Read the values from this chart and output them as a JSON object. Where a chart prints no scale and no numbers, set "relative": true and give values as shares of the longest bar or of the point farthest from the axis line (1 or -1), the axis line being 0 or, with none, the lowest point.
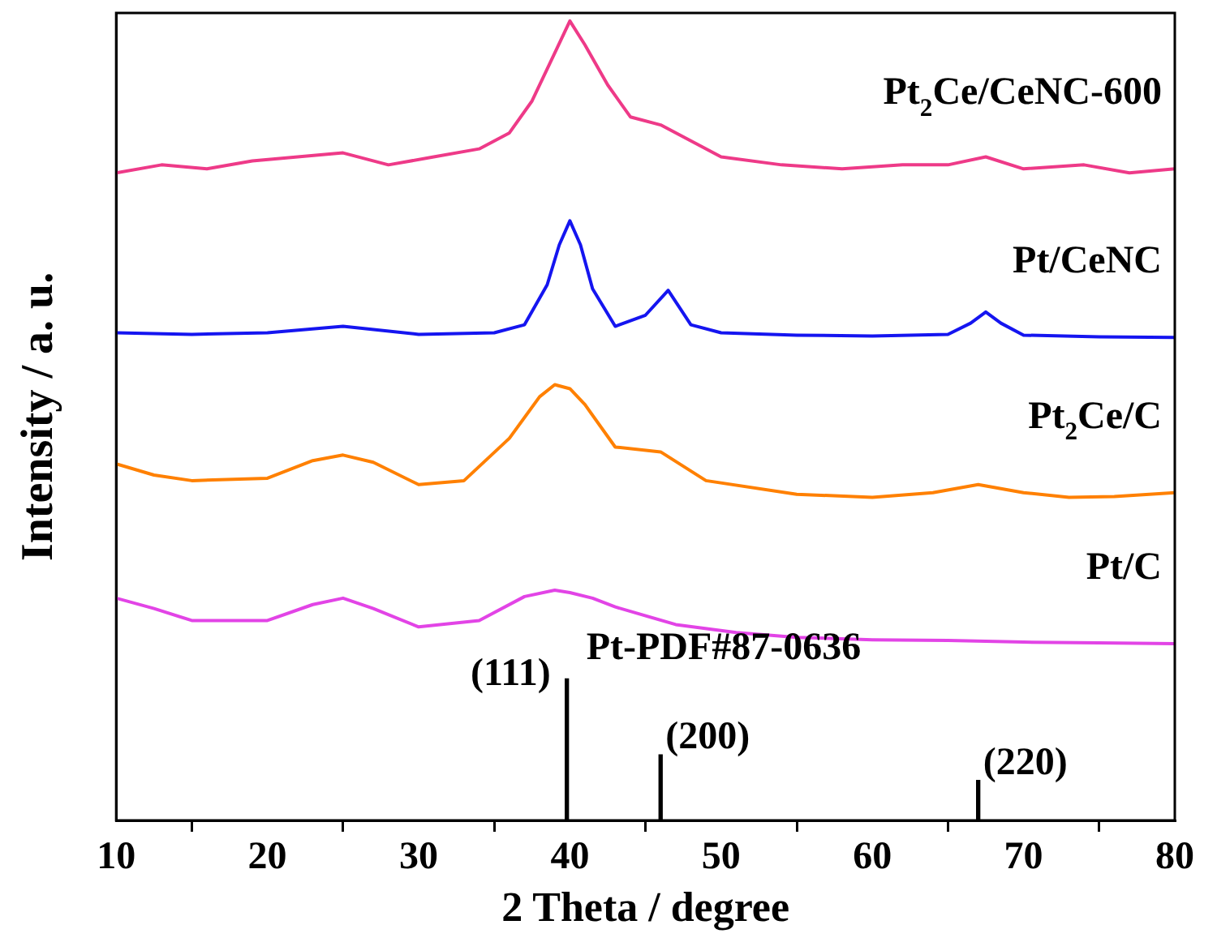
{
  "chart_data": {
    "type": "line",
    "xlabel": "2 Theta / degree",
    "ylabel": "Intensity / a. u.",
    "relative": true,
    "xlim": [
      10,
      80
    ],
    "xticks": [
      10,
      20,
      30,
      40,
      50,
      60,
      70,
      80
    ],
    "grid": false,
    "legend": false,
    "tick_labels": "x",
    "marker": "none",
    "line_style": "solid",
    "series": [
      {
        "name": "Pt$_{2}$Ce/CeNC-600",
        "color": "#ee3a88",
        "x": [
          10,
          13,
          16,
          19,
          22,
          25,
          28,
          31,
          34,
          36,
          37.5,
          39,
          40,
          41,
          42.5,
          44,
          46,
          48,
          50,
          54,
          58,
          62,
          65,
          67.5,
          70,
          74,
          77,
          80
        ],
        "values": [
          0.81,
          0.82,
          0.815,
          0.825,
          0.83,
          0.835,
          0.82,
          0.83,
          0.84,
          0.86,
          0.9,
          0.96,
          1.0,
          0.97,
          0.92,
          0.88,
          0.87,
          0.85,
          0.83,
          0.82,
          0.815,
          0.82,
          0.82,
          0.83,
          0.815,
          0.82,
          0.81,
          0.815
        ]
      },
      {
        "name": "Pt/CeNC",
        "color": "#1515f0",
        "x": [
          10,
          15,
          20,
          25,
          30,
          35,
          37,
          38.5,
          39.3,
          40,
          40.7,
          41.5,
          43,
          45,
          46.5,
          48,
          50,
          55,
          60,
          65,
          66.5,
          67.5,
          68.5,
          70,
          75,
          80
        ],
        "values": [
          0.61,
          0.608,
          0.61,
          0.618,
          0.608,
          0.61,
          0.62,
          0.67,
          0.72,
          0.75,
          0.72,
          0.665,
          0.618,
          0.632,
          0.663,
          0.62,
          0.61,
          0.607,
          0.606,
          0.608,
          0.622,
          0.636,
          0.622,
          0.607,
          0.605,
          0.604
        ]
      },
      {
        "name": "Pt$_{2}$Ce/C",
        "color": "#ff8000",
        "x": [
          10,
          12.5,
          15,
          20,
          23,
          25,
          27,
          30,
          33,
          36,
          38,
          39,
          40,
          41,
          43,
          46,
          49,
          55,
          60,
          64,
          67,
          70,
          73,
          76,
          80
        ],
        "values": [
          0.446,
          0.432,
          0.425,
          0.428,
          0.45,
          0.457,
          0.448,
          0.42,
          0.425,
          0.478,
          0.53,
          0.545,
          0.54,
          0.52,
          0.467,
          0.461,
          0.425,
          0.408,
          0.404,
          0.41,
          0.42,
          0.41,
          0.404,
          0.405,
          0.41
        ]
      },
      {
        "name": "Pt/C",
        "color": "#e244e6",
        "x": [
          10,
          12.5,
          15,
          20,
          23,
          25,
          27,
          30,
          34,
          37,
          39,
          40,
          41.5,
          43,
          47,
          51,
          55,
          60,
          65,
          70,
          75,
          80
        ],
        "values": [
          0.278,
          0.265,
          0.25,
          0.25,
          0.27,
          0.278,
          0.265,
          0.242,
          0.25,
          0.28,
          0.288,
          0.285,
          0.278,
          0.267,
          0.245,
          0.235,
          0.229,
          0.226,
          0.225,
          0.223,
          0.222,
          0.221
        ]
      },
      {
        "name": "Pt-PDF#87-0636",
        "type": "bar",
        "color": "#000000",
        "x": [
          39.8,
          46,
          67
        ],
        "values": [
          0.177,
          0.082,
          0.05
        ]
      }
    ],
    "annotations": [
      {
        "text": "(111)",
        "x": 39.8,
        "y": 0.177
      },
      {
        "text": "(200)",
        "x": 46,
        "y": 0.082
      },
      {
        "text": "(220)",
        "x": 67,
        "y": 0.05
      }
    ]
  }
}
